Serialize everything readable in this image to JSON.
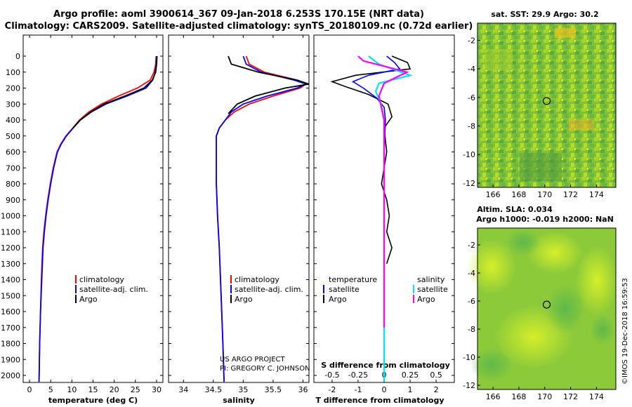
{
  "titles": {
    "line1": "Argo profile: aoml 3900614_367 09-Jan-2018 6.253S 170.15E (NRT data)",
    "line2": "Climatology: CARS2009. Satellite-adjusted climatology: synTS_20180109.nc (0.72d earlier)"
  },
  "credit": {
    "line1": "US ARGO PROJECT",
    "line2": "PI: GREGORY C. JOHNSON"
  },
  "imos_stamp": "©IMOS 19-Dec-2018 16:59:53",
  "colors": {
    "climatology": "#ff0000",
    "satellite": "#0000ff",
    "argo": "#000000",
    "sal_satellite": "#00e5ee",
    "sal_argo": "#ff00ff"
  },
  "chart_data": [
    {
      "type": "line",
      "id": "temperature",
      "xlabel": "temperature (deg C)",
      "ylabel": "",
      "xlim": [
        -1.5,
        31.5
      ],
      "ylim": [
        2050,
        0
      ],
      "xticks": [
        0,
        5,
        10,
        15,
        20,
        25,
        30
      ],
      "yticks": [
        0,
        100,
        200,
        300,
        400,
        500,
        600,
        700,
        800,
        900,
        1000,
        1100,
        1200,
        1300,
        1400,
        1500,
        1600,
        1700,
        1800,
        1900,
        2000
      ],
      "legend": [
        "climatology",
        "satellite-adj. clim.",
        "Argo"
      ],
      "series": [
        {
          "name": "climatology",
          "color": "#ff0000",
          "x": [
            29.9,
            29.8,
            29.4,
            28.5,
            25.5,
            21.0,
            17.0,
            14.0,
            11.8,
            10.2,
            8.6,
            7.4,
            6.5,
            5.6,
            4.9,
            4.3,
            3.8,
            3.4,
            3.1,
            2.8,
            2.6,
            2.4,
            2.25
          ],
          "y": [
            0,
            50,
            100,
            150,
            200,
            250,
            300,
            350,
            400,
            450,
            500,
            550,
            600,
            700,
            800,
            900,
            1000,
            1100,
            1200,
            1400,
            1600,
            1800,
            2040
          ]
        },
        {
          "name": "satellite-adj. clim.",
          "color": "#0000ff",
          "x": [
            30.0,
            29.9,
            29.7,
            29.1,
            27.5,
            23.0,
            18.0,
            14.6,
            12.0,
            10.3,
            8.7,
            7.5,
            6.6,
            5.7,
            5.0,
            4.4,
            3.9,
            3.5,
            3.2,
            2.9,
            2.6,
            2.4,
            2.25
          ],
          "y": [
            0,
            50,
            100,
            150,
            200,
            250,
            300,
            350,
            400,
            450,
            500,
            550,
            600,
            700,
            800,
            900,
            1000,
            1100,
            1200,
            1400,
            1600,
            1800,
            2040
          ]
        },
        {
          "name": "Argo",
          "color": "#000000",
          "x": [
            30.1,
            30.0,
            29.8,
            29.0,
            27.0,
            22.5,
            17.6,
            14.4,
            12.0,
            10.3
          ],
          "y": [
            0,
            50,
            100,
            150,
            200,
            250,
            300,
            350,
            400,
            450
          ]
        }
      ]
    },
    {
      "type": "line",
      "id": "salinity",
      "xlabel": "salinity",
      "ylabel": "",
      "xlim": [
        33.75,
        36.1
      ],
      "ylim": [
        2050,
        0
      ],
      "xticks": [
        34,
        34.5,
        35,
        35.5,
        36
      ],
      "legend": [
        "climatology",
        "satellite-adj. clim.",
        "Argo"
      ],
      "series": [
        {
          "name": "climatology",
          "color": "#ff0000",
          "x": [
            35.05,
            35.1,
            35.35,
            35.9,
            36.05,
            35.95,
            35.5,
            35.1,
            34.85,
            34.7,
            34.6,
            34.55,
            34.55,
            34.55,
            34.57,
            34.6,
            34.63,
            34.66,
            34.68
          ],
          "y": [
            0,
            50,
            100,
            150,
            175,
            200,
            250,
            300,
            350,
            400,
            450,
            500,
            600,
            800,
            1000,
            1200,
            1500,
            1800,
            2040
          ]
        },
        {
          "name": "satellite-adj. clim.",
          "color": "#0000ff",
          "x": [
            35.0,
            35.05,
            35.3,
            35.85,
            36.05,
            35.9,
            35.4,
            35.0,
            34.8,
            34.7,
            34.6,
            34.55,
            34.55,
            34.55,
            34.57,
            34.6,
            34.63,
            34.66,
            34.68
          ],
          "y": [
            0,
            50,
            100,
            150,
            175,
            200,
            250,
            300,
            350,
            400,
            450,
            500,
            600,
            800,
            1000,
            1200,
            1500,
            1800,
            2040
          ]
        },
        {
          "name": "Argo",
          "color": "#000000",
          "x": [
            34.75,
            34.8,
            35.25,
            35.9,
            36.1,
            35.7,
            35.2,
            34.9,
            34.75
          ],
          "y": [
            0,
            50,
            100,
            150,
            175,
            200,
            250,
            300,
            360
          ]
        }
      ]
    },
    {
      "type": "line",
      "id": "difference",
      "xlabel": "T difference from climatology",
      "xlabel2": "S difference from climatology",
      "xlim": [
        -2.7,
        2.7
      ],
      "x2lim": [
        -0.675,
        0.675
      ],
      "ylim": [
        2050,
        0
      ],
      "xticks": [
        -2,
        -1,
        0,
        1,
        2
      ],
      "x2ticks": [
        -0.5,
        -0.25,
        0,
        0.25,
        0.5
      ],
      "x2ticklabels": [
        "-0.5",
        "-0.25",
        "0",
        "0.25",
        "0.5"
      ],
      "legend_temperature": {
        "heading": "temperature",
        "items": [
          "satellite",
          "Argo"
        ]
      },
      "legend_salinity": {
        "heading": "salinity",
        "items": [
          "satellite",
          "Argo"
        ]
      },
      "series": [
        {
          "name": "temperature Argo",
          "color": "#000000",
          "axis": "T",
          "x": [
            0.3,
            0.9,
            1.0,
            -1.1,
            -2.0,
            -1.5,
            -0.6,
            0.15,
            0.3,
            0.0,
            0.1,
            -0.1,
            0.1,
            0.2,
            0.1,
            0.3,
            0.1
          ],
          "y": [
            0,
            40,
            80,
            120,
            160,
            190,
            240,
            300,
            380,
            450,
            600,
            800,
            900,
            1000,
            1100,
            1200,
            1300
          ]
        },
        {
          "name": "temperature satellite",
          "color": "#0000ff",
          "axis": "T",
          "x": [
            0.1,
            0.4,
            0.6,
            -0.6,
            -1.2,
            -0.8,
            -0.3,
            0.0,
            0.05,
            0.0,
            0.0,
            0.0,
            0.0,
            0.0
          ],
          "y": [
            0,
            40,
            80,
            120,
            160,
            200,
            260,
            320,
            400,
            600,
            1000,
            1400,
            1800,
            2040
          ]
        },
        {
          "name": "salinity satellite",
          "color": "#00e5ee",
          "axis": "S",
          "x": [
            -0.15,
            -0.05,
            0.25,
            -0.05,
            -0.08,
            -0.03,
            0.0,
            0.0,
            0.0,
            0.0,
            0.0
          ],
          "y": [
            0,
            50,
            120,
            170,
            220,
            300,
            400,
            600,
            1000,
            1500,
            2040
          ]
        },
        {
          "name": "salinity Argo",
          "color": "#ff00ff",
          "axis": "S",
          "x": [
            -0.25,
            -0.2,
            0.22,
            0.0,
            -0.05,
            0.0,
            0.0,
            0.0,
            0.0,
            0.0
          ],
          "y": [
            0,
            30,
            100,
            170,
            250,
            400,
            600,
            1000,
            1500,
            1700
          ]
        }
      ]
    },
    {
      "type": "heatmap",
      "id": "sst_map",
      "title": "sat. SST: 29.9 Argo: 30.2",
      "xlim": [
        164.8,
        175.5
      ],
      "ylim": [
        -12.3,
        -0.8
      ],
      "xticks": [
        166,
        168,
        170,
        172,
        174
      ],
      "yticks": [
        -2,
        -4,
        -6,
        -8,
        -10,
        -12
      ],
      "marker": {
        "x": 170.15,
        "y": -6.253
      }
    },
    {
      "type": "heatmap",
      "id": "sla_map",
      "title": "Altim. SLA: 0.034",
      "subtitle": "Argo h1000: -0.019 h2000: NaN",
      "xlim": [
        164.8,
        175.5
      ],
      "ylim": [
        -12.3,
        -0.8
      ],
      "xticks": [
        166,
        168,
        170,
        172,
        174
      ],
      "yticks": [
        -2,
        -4,
        -6,
        -8,
        -10,
        -12
      ],
      "marker": {
        "x": 170.15,
        "y": -6.253
      }
    }
  ]
}
